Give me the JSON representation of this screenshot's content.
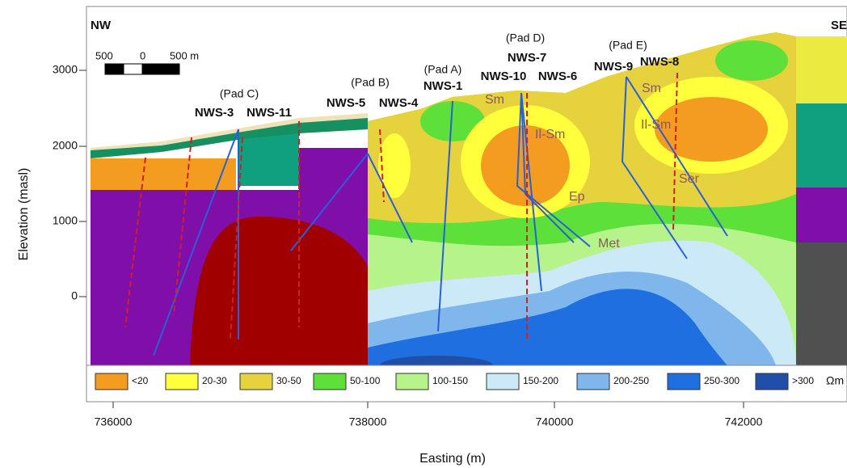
{
  "header": {
    "compass_left": "NW",
    "compass_right": "SE"
  },
  "scale_bar": {
    "labels": [
      "500",
      "0",
      "500 m"
    ]
  },
  "axes": {
    "x": {
      "label": "Easting (m)",
      "ticks": [
        "736000",
        "738000",
        "740000",
        "742000"
      ]
    },
    "y": {
      "label": "Elevation (masl)",
      "ticks": [
        "3000",
        "2000",
        "1000",
        "0"
      ]
    }
  },
  "pads": [
    "(Pad C)",
    "(Pad B)",
    "(Pad A)",
    "(Pad D)",
    "(Pad E)"
  ],
  "wells": [
    "NWS-3",
    "NWS-11",
    "NWS-5",
    "NWS-4",
    "NWS-1",
    "NWS-7",
    "NWS-10",
    "NWS-6",
    "NWS-9",
    "NWS-8"
  ],
  "zones": [
    "Sm",
    "Il-Sm",
    "Ep",
    "Met",
    "Sm",
    "Il-Sm",
    "Ser"
  ],
  "legend": {
    "items": [
      "<20",
      "20-30",
      "30-50",
      "50-100",
      "100-150",
      "150-200",
      "200-250",
      "250-300",
      ">300"
    ],
    "unit": "Ωm"
  }
}
